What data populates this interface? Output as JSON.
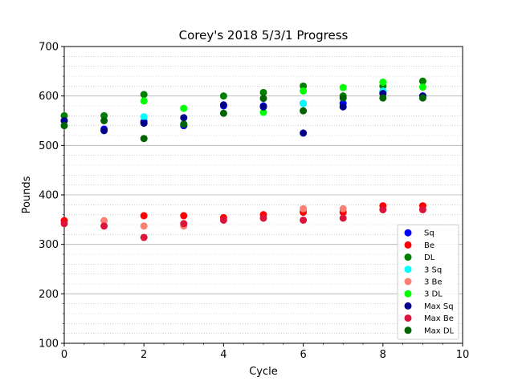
{
  "chart_data": {
    "type": "scatter",
    "title": "Corey's 2018 5/3/1 Progress",
    "xlabel": "Cycle",
    "ylabel": "Pounds",
    "xlim": [
      0,
      10
    ],
    "ylim": [
      100,
      700
    ],
    "xticks": [
      0,
      2,
      4,
      6,
      8,
      10
    ],
    "yticks": [
      100,
      200,
      300,
      400,
      500,
      600,
      700
    ],
    "grid": "horizontal major solid, minor dotted",
    "legend_position": "lower-right",
    "series": [
      {
        "name": "Sq",
        "color": "#0000ff",
        "points": [
          [
            0,
            550
          ],
          [
            1,
            533
          ],
          [
            2,
            548
          ],
          [
            3,
            540
          ],
          [
            4,
            580
          ],
          [
            5,
            580
          ],
          [
            6,
            585
          ],
          [
            7,
            585
          ],
          [
            8,
            608
          ],
          [
            9,
            600
          ]
        ]
      },
      {
        "name": "Be",
        "color": "#ff0000",
        "points": [
          [
            0,
            348
          ],
          [
            2,
            358
          ],
          [
            3,
            358
          ],
          [
            4,
            354
          ],
          [
            5,
            360
          ],
          [
            6,
            365
          ],
          [
            7,
            365
          ],
          [
            8,
            378
          ],
          [
            9,
            378
          ]
        ]
      },
      {
        "name": "DL",
        "color": "#008000",
        "points": [
          [
            0,
            560
          ],
          [
            1,
            560
          ],
          [
            2,
            603
          ],
          [
            3,
            543
          ],
          [
            4,
            600
          ],
          [
            5,
            607
          ],
          [
            6,
            620
          ],
          [
            7,
            600
          ],
          [
            8,
            620
          ],
          [
            9,
            630
          ]
        ]
      },
      {
        "name": "3 Sq",
        "color": "#00ffff",
        "points": [
          [
            2,
            558
          ],
          [
            6,
            585
          ],
          [
            8,
            610
          ]
        ]
      },
      {
        "name": "3 Be",
        "color": "#fa8072",
        "points": [
          [
            1,
            348
          ],
          [
            2,
            337
          ],
          [
            3,
            337
          ],
          [
            6,
            372
          ],
          [
            7,
            372
          ]
        ]
      },
      {
        "name": "3 DL",
        "color": "#00ff00",
        "points": [
          [
            2,
            590
          ],
          [
            3,
            575
          ],
          [
            5,
            567
          ],
          [
            6,
            610
          ],
          [
            7,
            617
          ],
          [
            8,
            628
          ],
          [
            9,
            618
          ]
        ]
      },
      {
        "name": "Max Sq",
        "color": "#00008b",
        "points": [
          [
            0,
            550
          ],
          [
            1,
            530
          ],
          [
            2,
            545
          ],
          [
            3,
            556
          ],
          [
            4,
            582
          ],
          [
            5,
            578
          ],
          [
            6,
            525
          ],
          [
            7,
            578
          ],
          [
            8,
            605
          ],
          [
            9,
            600
          ]
        ]
      },
      {
        "name": "Max Be",
        "color": "#dc143c",
        "points": [
          [
            0,
            342
          ],
          [
            1,
            337
          ],
          [
            2,
            314
          ],
          [
            3,
            342
          ],
          [
            4,
            349
          ],
          [
            5,
            353
          ],
          [
            6,
            349
          ],
          [
            7,
            353
          ],
          [
            8,
            370
          ],
          [
            9,
            370
          ]
        ]
      },
      {
        "name": "Max DL",
        "color": "#006400",
        "points": [
          [
            0,
            540
          ],
          [
            1,
            550
          ],
          [
            2,
            514
          ],
          [
            3,
            543
          ],
          [
            4,
            565
          ],
          [
            5,
            595
          ],
          [
            6,
            570
          ],
          [
            7,
            596
          ],
          [
            8,
            596
          ],
          [
            9,
            596
          ]
        ]
      }
    ]
  }
}
